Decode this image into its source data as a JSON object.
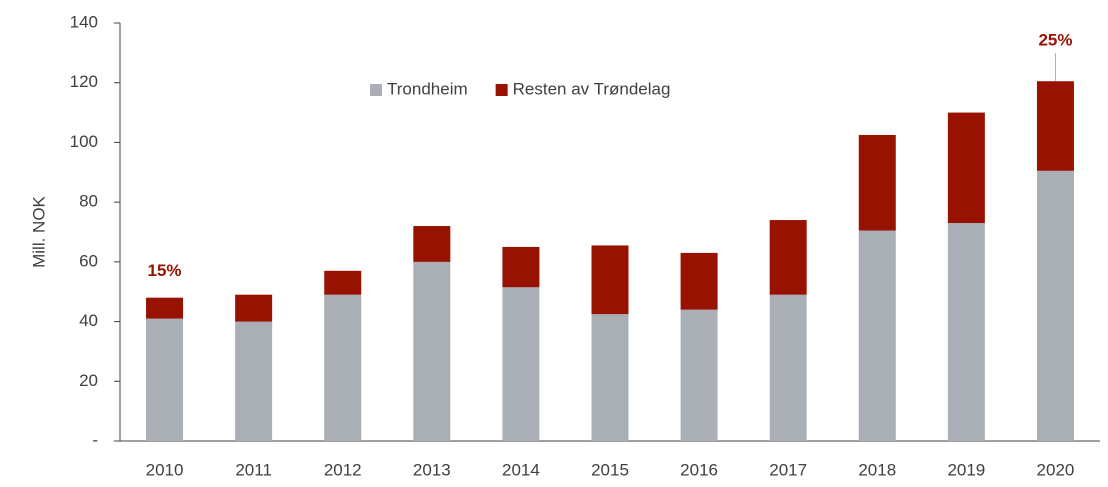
{
  "chart_data": {
    "type": "stacked_bar",
    "y_label": "Mill. NOK",
    "categories": [
      "2010",
      "2011",
      "2012",
      "2013",
      "2014",
      "2015",
      "2016",
      "2017",
      "2018",
      "2019",
      "2020"
    ],
    "series": [
      {
        "name": "Trondheim",
        "color": "#a9afb5",
        "values": [
          41,
          40,
          49,
          60,
          51.5,
          42.5,
          44,
          49,
          70.5,
          73,
          90.5
        ]
      },
      {
        "name": "Resten av Trøndelag",
        "color": "#971200",
        "values": [
          7,
          9,
          8,
          12,
          13.5,
          23,
          19,
          25,
          32,
          37,
          30
        ]
      }
    ],
    "ylim": [
      0,
      140
    ],
    "yticks": [
      {
        "value": 0,
        "label": "-"
      },
      20,
      40,
      60,
      80,
      100,
      120,
      140
    ],
    "legend": "top",
    "annotations": [
      {
        "text": "15%",
        "category": "2010",
        "color": "#971200"
      },
      {
        "text": "25%",
        "category": "2020",
        "color": "#971200"
      }
    ]
  }
}
